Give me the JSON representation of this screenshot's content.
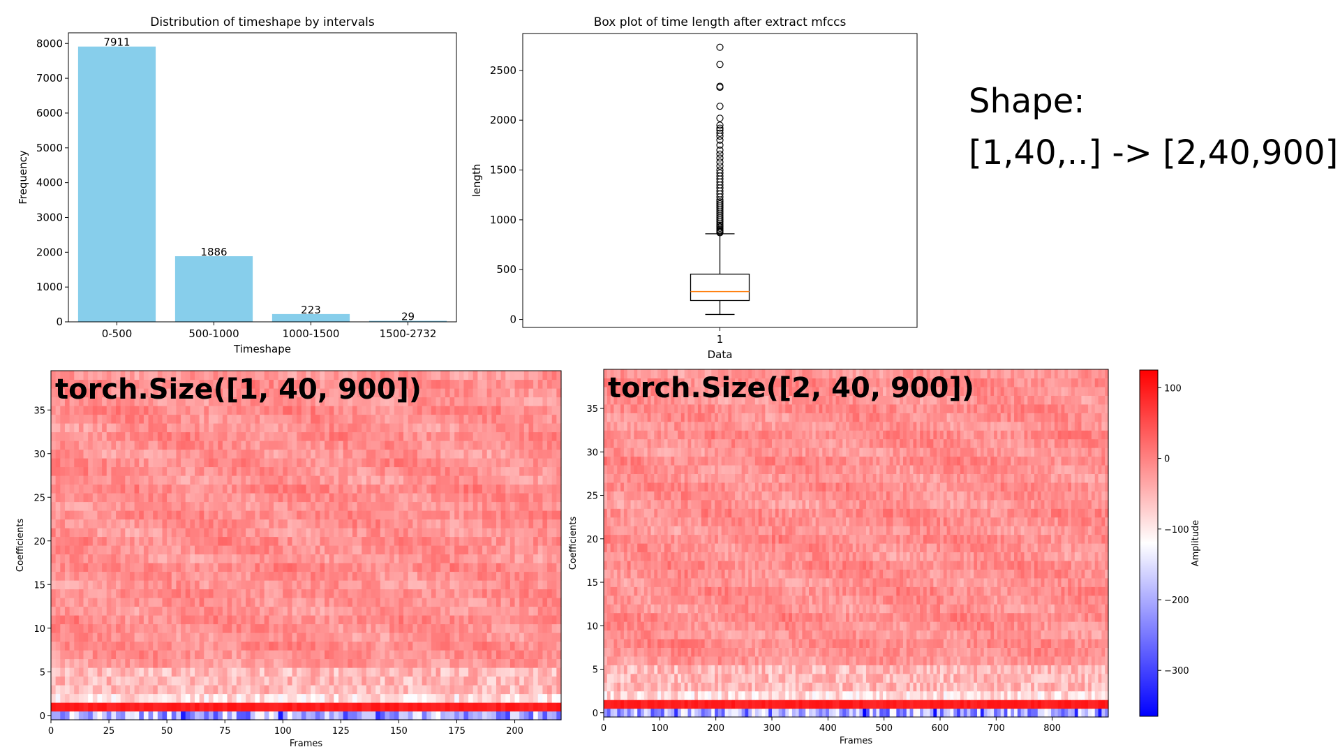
{
  "note": {
    "line1": "Shape:",
    "line2": "[1,40,..] -> [2,40,900]"
  },
  "chart_data": [
    {
      "type": "bar",
      "title": "Distribution of timeshape by intervals",
      "xlabel": "Timeshape",
      "ylabel": "Frequency",
      "categories": [
        "0-500",
        "500-1000",
        "1000-1500",
        "1500-2732"
      ],
      "values": [
        7911,
        1886,
        223,
        29
      ],
      "data_labels": [
        "7911",
        "1886",
        "223",
        "29"
      ],
      "ylim": [
        0,
        8306
      ],
      "yticks": [
        0,
        1000,
        2000,
        3000,
        4000,
        5000,
        6000,
        7000,
        8000
      ],
      "bar_color": "#87ceeb",
      "grid": false
    },
    {
      "type": "box",
      "title": "Box plot of time length after extract mfccs",
      "xlabel": "Data",
      "ylabel": "length",
      "categories": [
        "1"
      ],
      "box": {
        "whisker_low": 50,
        "q1": 190,
        "median": 280,
        "q3": 455,
        "whisker_high": 860
      },
      "outliers": [
        870,
        880,
        890,
        900,
        915,
        930,
        945,
        960,
        980,
        1000,
        1020,
        1040,
        1060,
        1080,
        1100,
        1120,
        1140,
        1160,
        1180,
        1200,
        1230,
        1260,
        1290,
        1320,
        1350,
        1380,
        1410,
        1440,
        1470,
        1500,
        1540,
        1580,
        1620,
        1660,
        1700,
        1750,
        1800,
        1840,
        1870,
        1900,
        1920,
        1950,
        2020,
        2140,
        2330,
        2340,
        2560,
        2732
      ],
      "ylim": [
        -80,
        2870
      ],
      "yticks": [
        0,
        500,
        1000,
        1500,
        2000,
        2500
      ],
      "median_color": "#ff7f0e",
      "grid": false
    },
    {
      "type": "heatmap",
      "overlay_title": "torch.Size([1, 40, 900])",
      "xlabel": "Frames",
      "ylabel": "Coefficients",
      "xlim": [
        0,
        220
      ],
      "ylim": [
        -0.5,
        39.5
      ],
      "xticks": [
        0,
        25,
        50,
        75,
        100,
        125,
        150,
        175,
        200
      ],
      "yticks": [
        0,
        5,
        10,
        15,
        20,
        25,
        30,
        35
      ],
      "colormap": "bwr",
      "value_range": [
        -350,
        120
      ]
    },
    {
      "type": "heatmap",
      "overlay_title": "torch.Size([2, 40, 900])",
      "xlabel": "Frames",
      "ylabel": "Coefficients",
      "xlim": [
        0,
        900
      ],
      "ylim": [
        -0.5,
        39.5
      ],
      "xticks": [
        0,
        100,
        200,
        300,
        400,
        500,
        600,
        700,
        800
      ],
      "yticks": [
        0,
        5,
        10,
        15,
        20,
        25,
        30,
        35
      ],
      "colormap": "bwr",
      "value_range": [
        -350,
        120
      ],
      "colorbar": {
        "label": "Amplitude",
        "ticks": [
          100,
          0,
          -100,
          -200,
          -300
        ]
      }
    }
  ]
}
